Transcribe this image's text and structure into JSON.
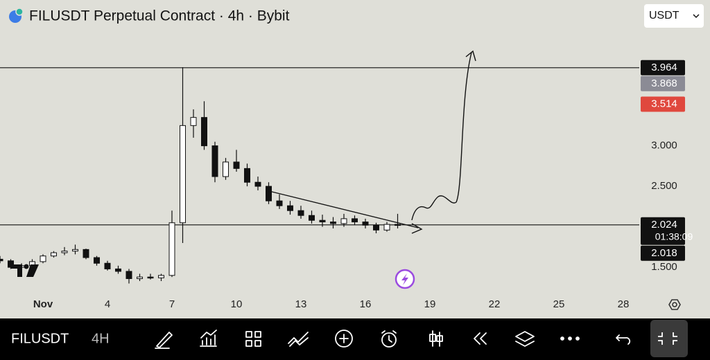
{
  "header": {
    "title": "FILUSDT Perpetual Contract · 4h · Bybit",
    "currency": "USDT"
  },
  "chart_data": {
    "type": "candlestick",
    "x": [
      -1,
      -0.5,
      0,
      0.5,
      1,
      1.5,
      2,
      2.5,
      3,
      3.5,
      4,
      4.5,
      5,
      5.5,
      6,
      6.5,
      7,
      7.5,
      8,
      8.5,
      9,
      9.5,
      10,
      10.5,
      11,
      11.5,
      12,
      12.5,
      13,
      13.5,
      14,
      14.5,
      15,
      15.5,
      16,
      16.5,
      17,
      17.5
    ],
    "open": [
      1.6,
      1.58,
      1.5,
      1.52,
      1.57,
      1.64,
      1.68,
      1.7,
      1.72,
      1.62,
      1.55,
      1.48,
      1.45,
      1.36,
      1.38,
      1.37,
      1.4,
      2.05,
      3.25,
      3.35,
      3.0,
      2.62,
      2.8,
      2.72,
      2.55,
      2.5,
      2.32,
      2.26,
      2.2,
      2.14,
      2.08,
      2.06,
      2.04,
      2.1,
      2.06,
      2.02,
      1.96,
      2.03
    ],
    "high": [
      1.64,
      1.6,
      1.55,
      1.6,
      1.66,
      1.7,
      1.75,
      1.78,
      1.73,
      1.64,
      1.58,
      1.52,
      1.48,
      1.42,
      1.42,
      1.42,
      2.2,
      3.97,
      3.45,
      3.55,
      3.05,
      2.85,
      2.95,
      2.78,
      2.62,
      2.55,
      2.4,
      2.32,
      2.26,
      2.2,
      2.15,
      2.12,
      2.16,
      2.14,
      2.1,
      2.05,
      2.06,
      2.16
    ],
    "low": [
      1.55,
      1.48,
      1.45,
      1.5,
      1.55,
      1.62,
      1.65,
      1.66,
      1.6,
      1.52,
      1.46,
      1.42,
      1.3,
      1.33,
      1.35,
      1.33,
      1.38,
      1.8,
      3.1,
      2.95,
      2.55,
      2.58,
      2.68,
      2.5,
      2.45,
      2.28,
      2.22,
      2.15,
      2.1,
      2.04,
      2.0,
      1.98,
      2.0,
      2.02,
      1.98,
      1.92,
      1.94,
      1.98
    ],
    "close": [
      1.58,
      1.5,
      1.52,
      1.57,
      1.64,
      1.68,
      1.7,
      1.72,
      1.62,
      1.55,
      1.48,
      1.45,
      1.36,
      1.38,
      1.37,
      1.4,
      2.05,
      3.25,
      3.35,
      3.0,
      2.62,
      2.8,
      2.72,
      2.55,
      2.5,
      2.32,
      2.26,
      2.2,
      2.14,
      2.08,
      2.06,
      2.04,
      2.1,
      2.06,
      2.02,
      1.96,
      2.03,
      2.024
    ],
    "up_color": "#ffffff",
    "down_color": "#111111",
    "xlim": [
      -1,
      29
    ],
    "xticks": [
      {
        "value": 1,
        "label": "Nov"
      },
      4,
      7,
      10,
      13,
      16,
      19,
      22,
      25,
      28
    ],
    "ylim": [
      1.2,
      4.8
    ],
    "yticks": [
      {
        "value": 3,
        "label": "3.000"
      },
      {
        "value": 2.5,
        "label": "2.500"
      },
      {
        "value": 1.5,
        "label": "1.500"
      }
    ],
    "hlines": [
      {
        "value": 3.964,
        "label": "3.964"
      },
      {
        "value": 2.024,
        "label": "2.024",
        "countdown": "01:38:09"
      }
    ],
    "price_labels": [
      {
        "value": 3.868,
        "label": "3.868",
        "color": "#8b8b95"
      },
      {
        "value": 3.514,
        "label": "3.514",
        "color": "#e0483e"
      },
      {
        "value": 2.018,
        "label": "2.018",
        "color": "#111111"
      }
    ]
  },
  "toolbar": {
    "symbol": "FILUSDT",
    "interval": "4H"
  }
}
